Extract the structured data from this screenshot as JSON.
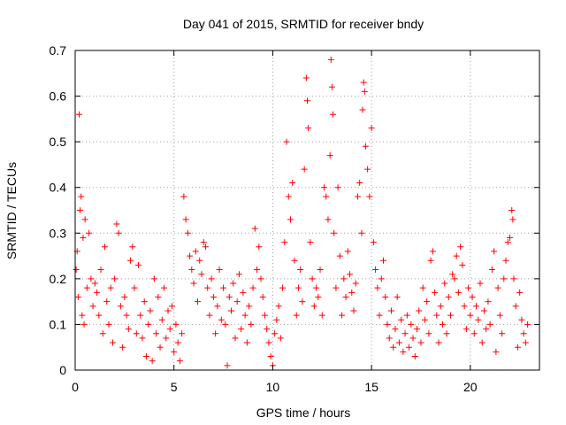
{
  "chart_data": {
    "type": "scatter",
    "title": "Day 041 of 2015, SRMTID for receiver bndy",
    "xlabel": "GPS time / hours",
    "ylabel": "SRMTID / TECUs",
    "xlim": [
      0,
      23.5
    ],
    "ylim": [
      0,
      0.7
    ],
    "xticks": [
      0,
      5,
      10,
      15,
      20
    ],
    "xtick_labels": [
      "0",
      "5",
      "10",
      "15",
      "20"
    ],
    "yticks": [
      0,
      0.1,
      0.2,
      0.3,
      0.4,
      0.5,
      0.6,
      0.7
    ],
    "ytick_labels": [
      "0",
      "0.1",
      "0.2",
      "0.3",
      "0.4",
      "0.5",
      "0.6",
      "0.7"
    ],
    "grid": true,
    "marker": "plus",
    "color": "#ff0000",
    "series": [
      {
        "name": "SRMTID",
        "points": [
          [
            0.05,
            0.22
          ],
          [
            0.1,
            0.26
          ],
          [
            0.15,
            0.16
          ],
          [
            0.2,
            0.56
          ],
          [
            0.25,
            0.35
          ],
          [
            0.3,
            0.38
          ],
          [
            0.35,
            0.12
          ],
          [
            0.4,
            0.29
          ],
          [
            0.45,
            0.1
          ],
          [
            0.5,
            0.33
          ],
          [
            0.6,
            0.18
          ],
          [
            0.7,
            0.3
          ],
          [
            0.8,
            0.2
          ],
          [
            0.9,
            0.14
          ],
          [
            1.0,
            0.19
          ],
          [
            1.1,
            0.17
          ],
          [
            1.2,
            0.12
          ],
          [
            1.3,
            0.22
          ],
          [
            1.4,
            0.08
          ],
          [
            1.5,
            0.27
          ],
          [
            1.6,
            0.15
          ],
          [
            1.7,
            0.1
          ],
          [
            1.8,
            0.18
          ],
          [
            1.9,
            0.06
          ],
          [
            2.0,
            0.2
          ],
          [
            2.1,
            0.32
          ],
          [
            2.2,
            0.3
          ],
          [
            2.3,
            0.14
          ],
          [
            2.4,
            0.05
          ],
          [
            2.5,
            0.16
          ],
          [
            2.6,
            0.12
          ],
          [
            2.7,
            0.09
          ],
          [
            2.8,
            0.24
          ],
          [
            2.9,
            0.27
          ],
          [
            3.0,
            0.18
          ],
          [
            3.1,
            0.08
          ],
          [
            3.2,
            0.23
          ],
          [
            3.3,
            0.12
          ],
          [
            3.4,
            0.07
          ],
          [
            3.5,
            0.15
          ],
          [
            3.6,
            0.03
          ],
          [
            3.7,
            0.1
          ],
          [
            3.8,
            0.13
          ],
          [
            3.9,
            0.02
          ],
          [
            4.0,
            0.2
          ],
          [
            4.1,
            0.08
          ],
          [
            4.2,
            0.16
          ],
          [
            4.3,
            0.05
          ],
          [
            4.4,
            0.11
          ],
          [
            4.5,
            0.18
          ],
          [
            4.6,
            0.07
          ],
          [
            4.7,
            0.13
          ],
          [
            4.8,
            0.09
          ],
          [
            4.9,
            0.14
          ],
          [
            5.0,
            0.04
          ],
          [
            5.1,
            0.1
          ],
          [
            5.2,
            0.06
          ],
          [
            5.3,
            0.02
          ],
          [
            5.4,
            0.08
          ],
          [
            5.5,
            0.38
          ],
          [
            5.6,
            0.33
          ],
          [
            5.7,
            0.3
          ],
          [
            5.8,
            0.25
          ],
          [
            5.9,
            0.22
          ],
          [
            6.0,
            0.19
          ],
          [
            6.1,
            0.26
          ],
          [
            6.2,
            0.15
          ],
          [
            6.3,
            0.24
          ],
          [
            6.4,
            0.21
          ],
          [
            6.5,
            0.28
          ],
          [
            6.6,
            0.27
          ],
          [
            6.7,
            0.18
          ],
          [
            6.8,
            0.12
          ],
          [
            6.9,
            0.2
          ],
          [
            7.0,
            0.16
          ],
          [
            7.1,
            0.08
          ],
          [
            7.2,
            0.14
          ],
          [
            7.3,
            0.22
          ],
          [
            7.4,
            0.11
          ],
          [
            7.5,
            0.18
          ],
          [
            7.6,
            0.1
          ],
          [
            7.7,
            0.01
          ],
          [
            7.8,
            0.16
          ],
          [
            7.9,
            0.13
          ],
          [
            8.0,
            0.19
          ],
          [
            8.1,
            0.07
          ],
          [
            8.2,
            0.15
          ],
          [
            8.3,
            0.21
          ],
          [
            8.4,
            0.09
          ],
          [
            8.5,
            0.17
          ],
          [
            8.6,
            0.12
          ],
          [
            8.7,
            0.06
          ],
          [
            8.8,
            0.14
          ],
          [
            8.9,
            0.1
          ],
          [
            9.0,
            0.18
          ],
          [
            9.1,
            0.31
          ],
          [
            9.2,
            0.22
          ],
          [
            9.3,
            0.27
          ],
          [
            9.4,
            0.2
          ],
          [
            9.5,
            0.16
          ],
          [
            9.6,
            0.12
          ],
          [
            9.7,
            0.09
          ],
          [
            9.8,
            0.06
          ],
          [
            9.9,
            0.03
          ],
          [
            10.0,
            0.01
          ],
          [
            10.1,
            0.08
          ],
          [
            10.2,
            0.11
          ],
          [
            10.3,
            0.14
          ],
          [
            10.4,
            0.07
          ],
          [
            10.5,
            0.18
          ],
          [
            10.6,
            0.28
          ],
          [
            10.7,
            0.5
          ],
          [
            10.8,
            0.38
          ],
          [
            10.9,
            0.33
          ],
          [
            11.0,
            0.41
          ],
          [
            11.1,
            0.24
          ],
          [
            11.2,
            0.12
          ],
          [
            11.3,
            0.18
          ],
          [
            11.4,
            0.22
          ],
          [
            11.5,
            0.15
          ],
          [
            11.6,
            0.44
          ],
          [
            11.7,
            0.64
          ],
          [
            11.75,
            0.59
          ],
          [
            11.8,
            0.53
          ],
          [
            11.9,
            0.28
          ],
          [
            12.0,
            0.2
          ],
          [
            12.1,
            0.14
          ],
          [
            12.2,
            0.18
          ],
          [
            12.3,
            0.16
          ],
          [
            12.4,
            0.22
          ],
          [
            12.5,
            0.12
          ],
          [
            12.6,
            0.4
          ],
          [
            12.7,
            0.38
          ],
          [
            12.8,
            0.33
          ],
          [
            12.9,
            0.47
          ],
          [
            12.95,
            0.68
          ],
          [
            13.0,
            0.62
          ],
          [
            13.05,
            0.56
          ],
          [
            13.1,
            0.3
          ],
          [
            13.2,
            0.18
          ],
          [
            13.3,
            0.4
          ],
          [
            13.4,
            0.25
          ],
          [
            13.5,
            0.12
          ],
          [
            13.6,
            0.2
          ],
          [
            13.7,
            0.16
          ],
          [
            13.8,
            0.26
          ],
          [
            13.9,
            0.21
          ],
          [
            14.0,
            0.17
          ],
          [
            14.1,
            0.13
          ],
          [
            14.2,
            0.19
          ],
          [
            14.3,
            0.38
          ],
          [
            14.4,
            0.41
          ],
          [
            14.5,
            0.3
          ],
          [
            14.55,
            0.57
          ],
          [
            14.6,
            0.63
          ],
          [
            14.65,
            0.61
          ],
          [
            14.7,
            0.49
          ],
          [
            14.8,
            0.44
          ],
          [
            14.9,
            0.38
          ],
          [
            15.0,
            0.53
          ],
          [
            15.1,
            0.28
          ],
          [
            15.2,
            0.22
          ],
          [
            15.3,
            0.18
          ],
          [
            15.4,
            0.12
          ],
          [
            15.5,
            0.2
          ],
          [
            15.6,
            0.24
          ],
          [
            15.7,
            0.16
          ],
          [
            15.8,
            0.1
          ],
          [
            15.9,
            0.07
          ],
          [
            16.0,
            0.13
          ],
          [
            16.1,
            0.05
          ],
          [
            16.2,
            0.09
          ],
          [
            16.3,
            0.16
          ],
          [
            16.4,
            0.06
          ],
          [
            16.5,
            0.11
          ],
          [
            16.6,
            0.04
          ],
          [
            16.7,
            0.08
          ],
          [
            16.8,
            0.12
          ],
          [
            16.9,
            0.05
          ],
          [
            17.0,
            0.1
          ],
          [
            17.1,
            0.07
          ],
          [
            17.2,
            0.03
          ],
          [
            17.3,
            0.09
          ],
          [
            17.4,
            0.13
          ],
          [
            17.5,
            0.06
          ],
          [
            17.6,
            0.18
          ],
          [
            17.7,
            0.11
          ],
          [
            17.8,
            0.15
          ],
          [
            17.9,
            0.08
          ],
          [
            18.0,
            0.24
          ],
          [
            18.1,
            0.26
          ],
          [
            18.2,
            0.17
          ],
          [
            18.3,
            0.12
          ],
          [
            18.4,
            0.06
          ],
          [
            18.5,
            0.14
          ],
          [
            18.6,
            0.1
          ],
          [
            18.7,
            0.19
          ],
          [
            18.8,
            0.08
          ],
          [
            18.9,
            0.16
          ],
          [
            19.0,
            0.12
          ],
          [
            19.1,
            0.21
          ],
          [
            19.2,
            0.2
          ],
          [
            19.3,
            0.25
          ],
          [
            19.4,
            0.17
          ],
          [
            19.5,
            0.27
          ],
          [
            19.6,
            0.23
          ],
          [
            19.7,
            0.14
          ],
          [
            19.8,
            0.09
          ],
          [
            19.9,
            0.18
          ],
          [
            20.0,
            0.12
          ],
          [
            20.1,
            0.16
          ],
          [
            20.2,
            0.08
          ],
          [
            20.3,
            0.14
          ],
          [
            20.4,
            0.11
          ],
          [
            20.5,
            0.19
          ],
          [
            20.6,
            0.06
          ],
          [
            20.7,
            0.13
          ],
          [
            20.8,
            0.09
          ],
          [
            20.9,
            0.15
          ],
          [
            21.0,
            0.1
          ],
          [
            21.1,
            0.22
          ],
          [
            21.2,
            0.26
          ],
          [
            21.3,
            0.04
          ],
          [
            21.4,
            0.18
          ],
          [
            21.5,
            0.12
          ],
          [
            21.6,
            0.08
          ],
          [
            21.7,
            0.2
          ],
          [
            21.8,
            0.24
          ],
          [
            21.9,
            0.28
          ],
          [
            22.0,
            0.29
          ],
          [
            22.1,
            0.35
          ],
          [
            22.15,
            0.33
          ],
          [
            22.2,
            0.2
          ],
          [
            22.3,
            0.14
          ],
          [
            22.4,
            0.05
          ],
          [
            22.5,
            0.17
          ],
          [
            22.6,
            0.11
          ],
          [
            22.7,
            0.08
          ],
          [
            22.8,
            0.06
          ],
          [
            22.9,
            0.1
          ]
        ]
      }
    ]
  }
}
